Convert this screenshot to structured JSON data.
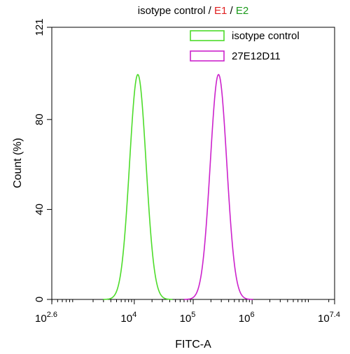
{
  "chart_data": {
    "type": "area",
    "title": {
      "part1": "isotype control / ",
      "part2": "E1",
      "sep": " / ",
      "part3": "E2",
      "color2": "#e02020",
      "color3": "#1a9a1a"
    },
    "xlabel": "FITC-A",
    "ylabel": "Count  (%)",
    "x_scale": "log10",
    "xlim_exponent": [
      2.6,
      7.4
    ],
    "ylim": [
      0,
      121
    ],
    "xticks": [
      {
        "base": "10",
        "exp": "2.6",
        "value": 2.6
      },
      {
        "base": "10",
        "exp": "4",
        "value": 4
      },
      {
        "base": "10",
        "exp": "5",
        "value": 5
      },
      {
        "base": "10",
        "exp": "6",
        "value": 6
      },
      {
        "base": "10",
        "exp": "7.4",
        "value": 7.4
      }
    ],
    "yticks": [
      {
        "label": "0",
        "value": 0
      },
      {
        "label": "40",
        "value": 40
      },
      {
        "label": "80",
        "value": 80
      },
      {
        "label": "121",
        "value": 121
      }
    ],
    "legend_position": "top-right",
    "series": [
      {
        "name": "isotype control",
        "color": "#4ddc2a",
        "peak_log": 4.06,
        "peak_value": 100,
        "sigma_log": 0.14,
        "fill": "none"
      },
      {
        "name": "27E12D11",
        "color": "#cc22cc",
        "peak_log": 5.43,
        "peak_value": 100,
        "sigma_log": 0.14,
        "fill": "none"
      }
    ]
  }
}
